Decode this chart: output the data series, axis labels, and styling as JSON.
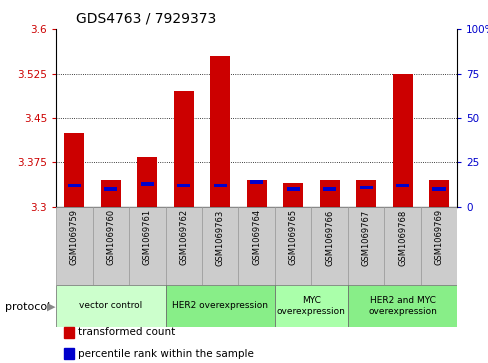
{
  "title": "GDS4763 / 7929373",
  "samples": [
    "GSM1069759",
    "GSM1069760",
    "GSM1069761",
    "GSM1069762",
    "GSM1069763",
    "GSM1069764",
    "GSM1069765",
    "GSM1069766",
    "GSM1069767",
    "GSM1069768",
    "GSM1069769"
  ],
  "transformed_count": [
    3.425,
    3.345,
    3.385,
    3.495,
    3.555,
    3.345,
    3.34,
    3.345,
    3.345,
    3.525,
    3.345
  ],
  "percentile_rank": [
    12,
    10,
    13,
    12,
    12,
    14,
    10,
    10,
    11,
    12,
    10
  ],
  "ylim_left": [
    3.3,
    3.6
  ],
  "ylim_right": [
    0,
    100
  ],
  "yticks_left": [
    3.3,
    3.375,
    3.45,
    3.525,
    3.6
  ],
  "yticks_right": [
    0,
    25,
    50,
    75,
    100
  ],
  "bar_color": "#cc0000",
  "percentile_color": "#0000cc",
  "bar_width": 0.55,
  "protocol_groups": [
    {
      "label": "vector control",
      "start": 0,
      "end": 2,
      "color": "#ccffcc"
    },
    {
      "label": "HER2 overexpression",
      "start": 3,
      "end": 5,
      "color": "#88ee88"
    },
    {
      "label": "MYC\noverexpression",
      "start": 6,
      "end": 7,
      "color": "#aaffaa"
    },
    {
      "label": "HER2 and MYC\noverexpression",
      "start": 8,
      "end": 10,
      "color": "#88ee88"
    }
  ],
  "left_axis_color": "#cc0000",
  "right_axis_color": "#0000cc",
  "legend_items": [
    {
      "label": "transformed count",
      "color": "#cc0000"
    },
    {
      "label": "percentile rank within the sample",
      "color": "#0000cc"
    }
  ],
  "cell_color": "#cccccc",
  "cell_edge_color": "#999999"
}
